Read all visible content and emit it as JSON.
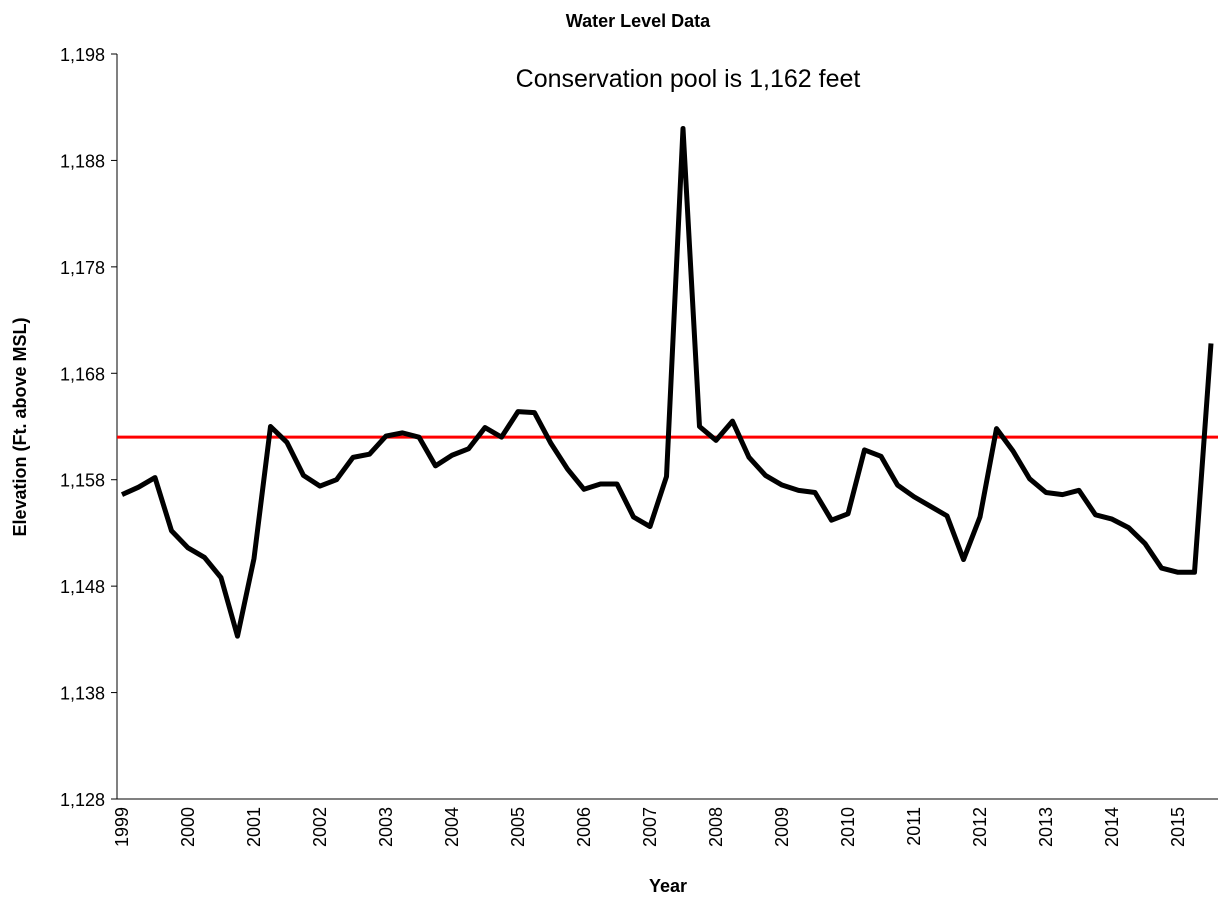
{
  "chart_data": {
    "type": "line",
    "title": "Water Level Data",
    "annotation": "Conservation pool is 1,162 feet",
    "x_label": "Year",
    "y_label": "Elevation (Ft. above MSL)",
    "categories": [
      "1999",
      null,
      null,
      null,
      "2000",
      null,
      null,
      null,
      "2001",
      null,
      null,
      null,
      "2002",
      null,
      null,
      null,
      "2003",
      null,
      null,
      null,
      "2004",
      null,
      null,
      null,
      "2005",
      null,
      null,
      null,
      "2006",
      null,
      null,
      null,
      "2007",
      null,
      null,
      null,
      "2008",
      null,
      null,
      null,
      "2009",
      null,
      null,
      null,
      "2010",
      null,
      null,
      null,
      "2011",
      null,
      null,
      null,
      "2012",
      null,
      null,
      null,
      "2013",
      null,
      null,
      null,
      "2014",
      null,
      null,
      null,
      "2015",
      null,
      null
    ],
    "series": [
      {
        "name": "Elevation",
        "color": "#000000",
        "values": [
          1156.6,
          1157.3,
          1158.2,
          1153.2,
          1151.6,
          1150.7,
          1148.8,
          1143.3,
          1150.6,
          1163.0,
          1161.5,
          1158.4,
          1157.4,
          1158.0,
          1160.1,
          1160.4,
          1162.1,
          1162.4,
          1162.0,
          1159.3,
          1160.3,
          1160.9,
          1162.9,
          1162.0,
          1164.4,
          1164.3,
          1161.4,
          1159.0,
          1157.1,
          1157.6,
          1157.6,
          1154.5,
          1153.6,
          1158.3,
          1191.0,
          1163.0,
          1161.7,
          1163.5,
          1160.1,
          1158.4,
          1157.5,
          1157.0,
          1156.8,
          1154.2,
          1154.8,
          1160.8,
          1160.2,
          1157.5,
          1156.4,
          1155.5,
          1154.6,
          1150.5,
          1154.5,
          1162.8,
          1160.7,
          1158.1,
          1156.8,
          1156.6,
          1157.0,
          1154.7,
          1154.3,
          1153.5,
          1152.0,
          1149.7,
          1149.3,
          1149.3,
          1170.8
        ]
      }
    ],
    "reference_line": {
      "value": 1162,
      "color": "#ff0000"
    },
    "ylim": [
      1128,
      1198
    ],
    "yticks": [
      {
        "value": 1128,
        "label": "1,128"
      },
      {
        "value": 1138,
        "label": "1,138"
      },
      {
        "value": 1148,
        "label": "1,148"
      },
      {
        "value": 1158,
        "label": "1,158"
      },
      {
        "value": 1168,
        "label": "1,168"
      },
      {
        "value": 1178,
        "label": "1,178"
      },
      {
        "value": 1188,
        "label": "1,188"
      },
      {
        "value": 1198,
        "label": "1,198"
      }
    ]
  }
}
